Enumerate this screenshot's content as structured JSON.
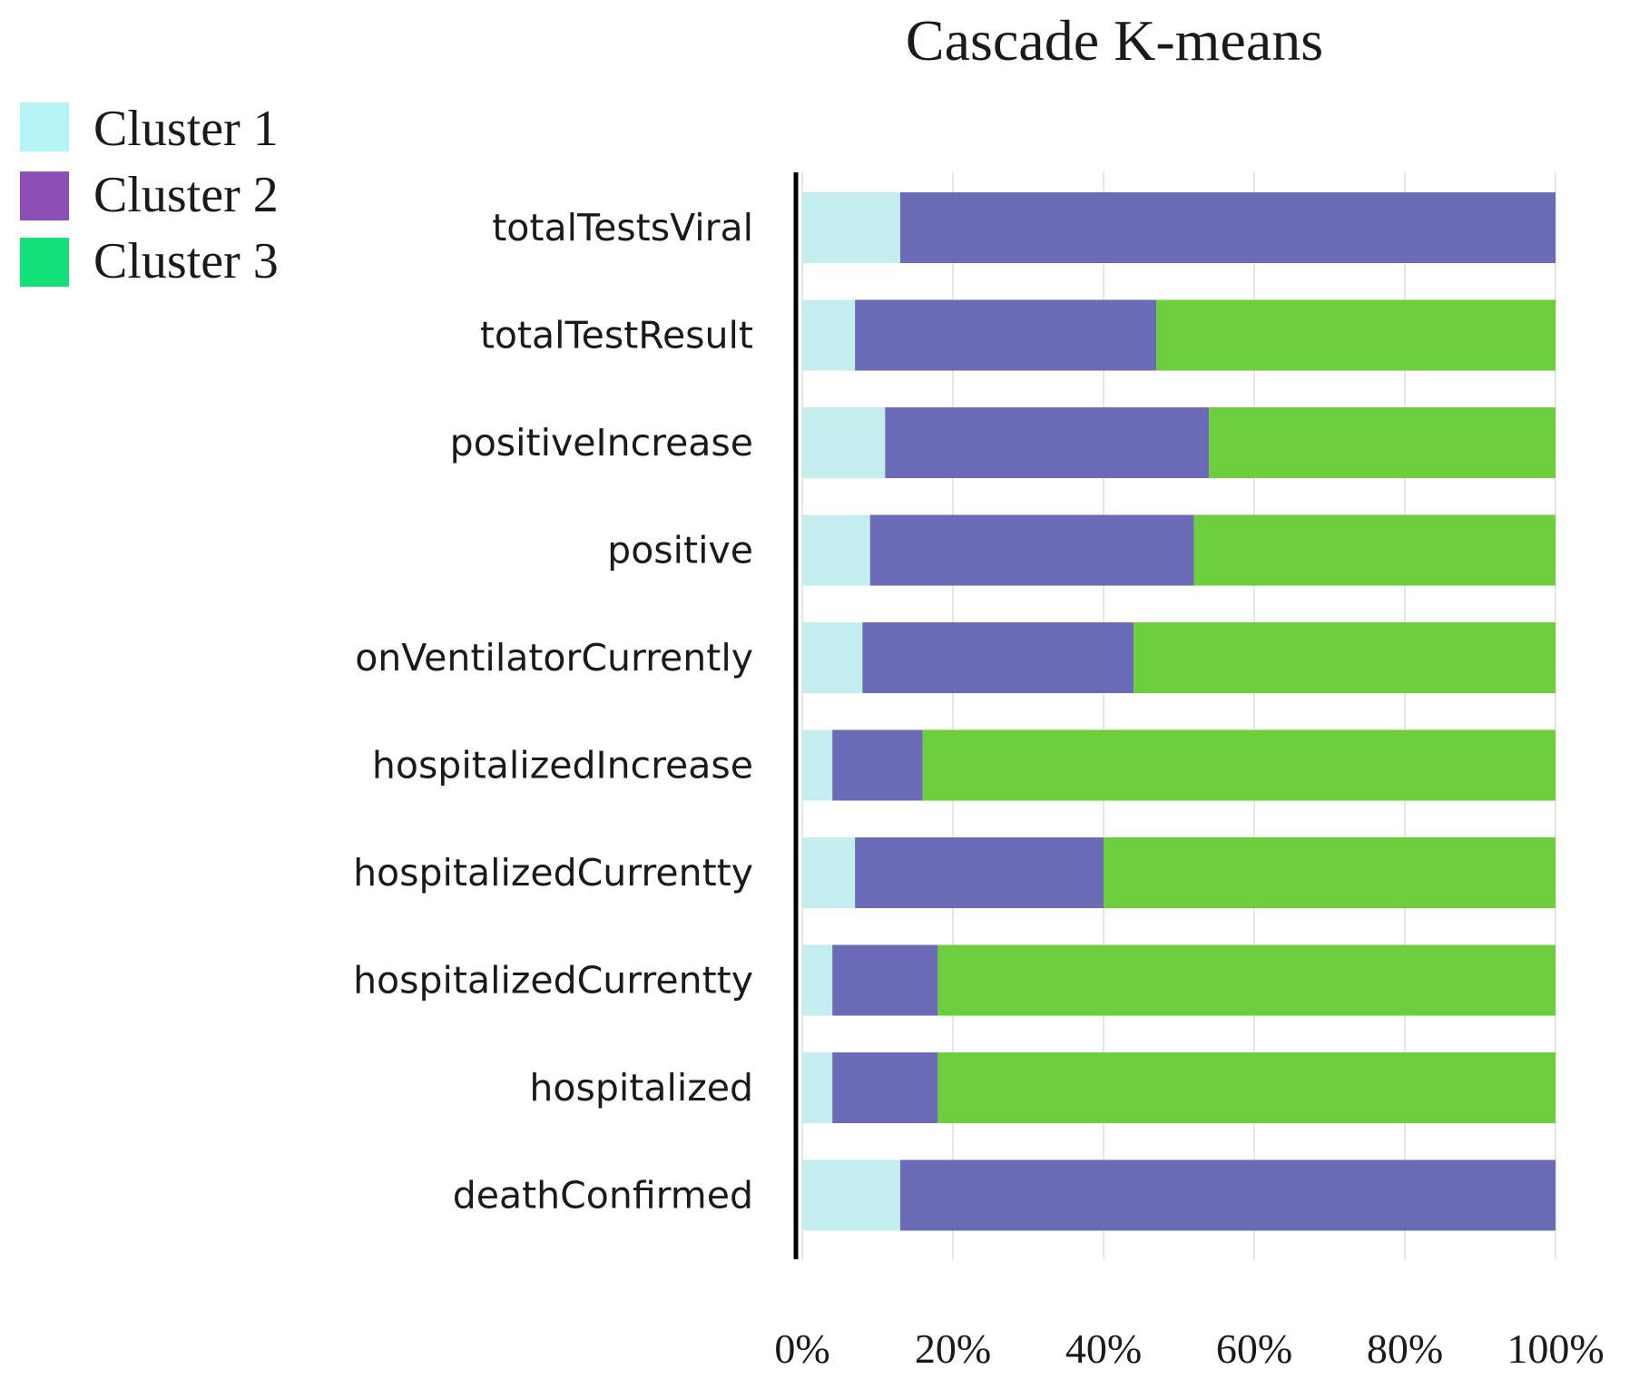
{
  "chart_data": {
    "type": "bar",
    "orientation": "horizontal",
    "stacked": true,
    "title": "Cascade K-means",
    "xlabel": "",
    "ylabel": "",
    "xlim": [
      0,
      100
    ],
    "x_ticks": [
      "0%",
      "20%",
      "40%",
      "60%",
      "80%",
      "100%"
    ],
    "grid": true,
    "legend_position": "top-left",
    "categories": [
      "totalTestsViral",
      "totalTestResult",
      "positiveIncrease",
      "positive",
      "onVentilatorCurrently",
      "hospitalizedIncrease",
      "hospitalizedCurrentty",
      "hospitalizedCurrentty",
      "hospitalized",
      "deathConfirmed"
    ],
    "series": [
      {
        "name": "Cluster 1",
        "color": "#c4eeee",
        "legend_color": "#b3f5f5",
        "values": [
          13,
          7,
          11,
          9,
          8,
          4,
          7,
          4,
          4,
          13
        ]
      },
      {
        "name": "Cluster 2",
        "color": "#6b6bb5",
        "legend_color": "#8b4fb6",
        "values": [
          87,
          40,
          43,
          43,
          36,
          12,
          33,
          14,
          14,
          87
        ]
      },
      {
        "name": "Cluster 3",
        "color": "#6cce3c",
        "legend_color": "#14e07a",
        "values": [
          0,
          53,
          46,
          48,
          56,
          84,
          60,
          82,
          82,
          0
        ]
      }
    ]
  }
}
